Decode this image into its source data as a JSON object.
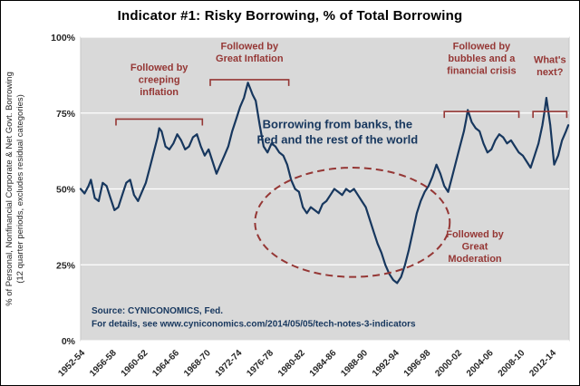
{
  "chart_data": {
    "type": "line",
    "title": "Indicator #1:  Risky Borrowing, % of Total Borrowing",
    "ylabel_lines": [
      "% of Personal, Nonfinancial Corporate & Net Govt. Borrowing",
      "(12 quarter periods, excludes residual categories)"
    ],
    "xlabel": "",
    "ylim": [
      0,
      100
    ],
    "xlim": [
      1952,
      2014.2
    ],
    "grid": "horizontal-only",
    "legend_position": "none",
    "y_ticks": [
      {
        "v": 0,
        "label": "0%"
      },
      {
        "v": 25,
        "label": "25%"
      },
      {
        "v": 50,
        "label": "50%"
      },
      {
        "v": 75,
        "label": "75%"
      },
      {
        "v": 100,
        "label": "100%"
      }
    ],
    "x_ticks": [
      {
        "year": 1952,
        "label": "1952-54"
      },
      {
        "year": 1956,
        "label": "1956-58"
      },
      {
        "year": 1960,
        "label": "1960-62"
      },
      {
        "year": 1964,
        "label": "1964-66"
      },
      {
        "year": 1968,
        "label": "1968-70"
      },
      {
        "year": 1972,
        "label": "1972-74"
      },
      {
        "year": 1976,
        "label": "1976-78"
      },
      {
        "year": 1980,
        "label": "1980-82"
      },
      {
        "year": 1984,
        "label": "1984-86"
      },
      {
        "year": 1988,
        "label": "1988-90"
      },
      {
        "year": 1992,
        "label": "1992-94"
      },
      {
        "year": 1996,
        "label": "1996-98"
      },
      {
        "year": 2000,
        "label": "2000-02"
      },
      {
        "year": 2004,
        "label": "2004-06"
      },
      {
        "year": 2008,
        "label": "2008-10"
      },
      {
        "year": 2012,
        "label": "2012-14"
      }
    ],
    "series": [
      {
        "name": "Risky borrowing, % of total borrowing",
        "points": [
          [
            1952,
            50
          ],
          [
            1952.5,
            48.5
          ],
          [
            1953,
            51
          ],
          [
            1953.3,
            53
          ],
          [
            1953.8,
            47
          ],
          [
            1954.3,
            46
          ],
          [
            1954.8,
            52
          ],
          [
            1955.3,
            51
          ],
          [
            1955.8,
            47
          ],
          [
            1956.3,
            43
          ],
          [
            1956.8,
            44
          ],
          [
            1957.3,
            48
          ],
          [
            1957.8,
            52
          ],
          [
            1958.3,
            53
          ],
          [
            1958.8,
            48
          ],
          [
            1959.3,
            46
          ],
          [
            1959.8,
            49
          ],
          [
            1960.3,
            52
          ],
          [
            1960.8,
            57
          ],
          [
            1961.3,
            62
          ],
          [
            1961.8,
            67
          ],
          [
            1962,
            70
          ],
          [
            1962.3,
            69
          ],
          [
            1962.8,
            64
          ],
          [
            1963.3,
            63
          ],
          [
            1963.8,
            65
          ],
          [
            1964.3,
            68
          ],
          [
            1964.8,
            66
          ],
          [
            1965.3,
            63
          ],
          [
            1965.8,
            64
          ],
          [
            1966.3,
            67
          ],
          [
            1966.8,
            68
          ],
          [
            1967.3,
            64
          ],
          [
            1967.8,
            61
          ],
          [
            1968.3,
            63
          ],
          [
            1968.8,
            59
          ],
          [
            1969.3,
            55
          ],
          [
            1969.8,
            58
          ],
          [
            1970.3,
            61
          ],
          [
            1970.8,
            64
          ],
          [
            1971.3,
            69
          ],
          [
            1971.8,
            73
          ],
          [
            1972.3,
            77
          ],
          [
            1972.8,
            80
          ],
          [
            1973.1,
            83
          ],
          [
            1973.3,
            85
          ],
          [
            1973.6,
            83
          ],
          [
            1973.9,
            81
          ],
          [
            1974.3,
            79
          ],
          [
            1974.8,
            71
          ],
          [
            1975.3,
            64
          ],
          [
            1975.8,
            62
          ],
          [
            1976.3,
            65
          ],
          [
            1976.8,
            64
          ],
          [
            1977.3,
            62
          ],
          [
            1977.8,
            61
          ],
          [
            1978.3,
            58
          ],
          [
            1978.8,
            53
          ],
          [
            1979.3,
            50
          ],
          [
            1979.8,
            49
          ],
          [
            1980.3,
            44
          ],
          [
            1980.8,
            42
          ],
          [
            1981.3,
            44
          ],
          [
            1981.8,
            43
          ],
          [
            1982.3,
            42
          ],
          [
            1982.8,
            45
          ],
          [
            1983.3,
            46
          ],
          [
            1983.8,
            48
          ],
          [
            1984.3,
            50
          ],
          [
            1984.8,
            49
          ],
          [
            1985.3,
            48
          ],
          [
            1985.8,
            50
          ],
          [
            1986.3,
            49
          ],
          [
            1986.8,
            50
          ],
          [
            1987.3,
            48
          ],
          [
            1987.8,
            46
          ],
          [
            1988.3,
            44
          ],
          [
            1988.8,
            40
          ],
          [
            1989.3,
            36
          ],
          [
            1989.8,
            32
          ],
          [
            1990.3,
            29
          ],
          [
            1990.8,
            25
          ],
          [
            1991.3,
            22
          ],
          [
            1991.8,
            20
          ],
          [
            1992.3,
            19
          ],
          [
            1992.8,
            21
          ],
          [
            1993.3,
            25
          ],
          [
            1993.8,
            30
          ],
          [
            1994.3,
            36
          ],
          [
            1994.8,
            42
          ],
          [
            1995.3,
            46
          ],
          [
            1995.8,
            49
          ],
          [
            1996.3,
            51
          ],
          [
            1996.8,
            54
          ],
          [
            1997.3,
            58
          ],
          [
            1997.8,
            55
          ],
          [
            1998.3,
            51
          ],
          [
            1998.8,
            49
          ],
          [
            1999.3,
            54
          ],
          [
            1999.8,
            59
          ],
          [
            2000.3,
            64
          ],
          [
            2000.8,
            69
          ],
          [
            2001.1,
            73
          ],
          [
            2001.3,
            76
          ],
          [
            2001.8,
            72
          ],
          [
            2002.3,
            70
          ],
          [
            2002.8,
            69
          ],
          [
            2003.3,
            65
          ],
          [
            2003.8,
            62
          ],
          [
            2004.3,
            63
          ],
          [
            2004.8,
            66
          ],
          [
            2005.3,
            68
          ],
          [
            2005.8,
            67
          ],
          [
            2006.3,
            65
          ],
          [
            2006.8,
            66
          ],
          [
            2007.3,
            64
          ],
          [
            2007.8,
            62
          ],
          [
            2008.3,
            61
          ],
          [
            2008.8,
            59
          ],
          [
            2009.3,
            57
          ],
          [
            2009.8,
            61
          ],
          [
            2010.3,
            65
          ],
          [
            2010.8,
            71
          ],
          [
            2011.1,
            76
          ],
          [
            2011.3,
            80
          ],
          [
            2011.8,
            71
          ],
          [
            2012.3,
            58
          ],
          [
            2012.8,
            61
          ],
          [
            2013.3,
            66
          ],
          [
            2013.8,
            69
          ],
          [
            2014.1,
            71
          ]
        ]
      }
    ],
    "annotations": {
      "line_label": {
        "lines": [
          "Borrowing from banks, the",
          "Fed and the rest of the world"
        ],
        "x_year": 1984.7,
        "y_pct": 70
      },
      "brackets": [
        {
          "lines": [
            "Followed by",
            "creeping",
            "inflation"
          ],
          "x1": 1956.5,
          "x2": 1967.5,
          "bracket_y_pct": 73,
          "text_y_pct": 89
        },
        {
          "lines": [
            "Followed by",
            "Great Inflation"
          ],
          "x1": 1968.5,
          "x2": 1978.5,
          "bracket_y_pct": 86,
          "text_y_pct": 96
        },
        {
          "lines": [
            "Followed by",
            "bubbles and a",
            "financial crisis"
          ],
          "x1": 1998.3,
          "x2": 2007.8,
          "bracket_y_pct": 75.5,
          "text_y_pct": 96
        },
        {
          "lines": [
            "What's",
            "next?"
          ],
          "x1": 2009.6,
          "x2": 2013.9,
          "bracket_y_pct": 75.5,
          "text_y_pct": 91.5
        }
      ],
      "moderation_label": {
        "lines": [
          "Followed by",
          "Great",
          "Moderation"
        ],
        "x_year": 2002.2,
        "y_pct": 34
      },
      "ellipse": {
        "cx_year": 1986.6,
        "cy_pct": 39,
        "rx_years": 12.4,
        "ry_pct": 18
      }
    },
    "source_lines": [
      "Source:  CYNICONOMICS, Fed.",
      "For details, see www.cyniconomics.com/2014/05/05/tech-notes-3-indicators"
    ],
    "colors": {
      "line": "#17375E",
      "annotation_red": "#953735",
      "plot_bg": "#D9D9D9",
      "gridline": "#FFFFFF",
      "axis_text": "#262626",
      "source_text": "#17375E",
      "frame_border": "#000000"
    }
  }
}
